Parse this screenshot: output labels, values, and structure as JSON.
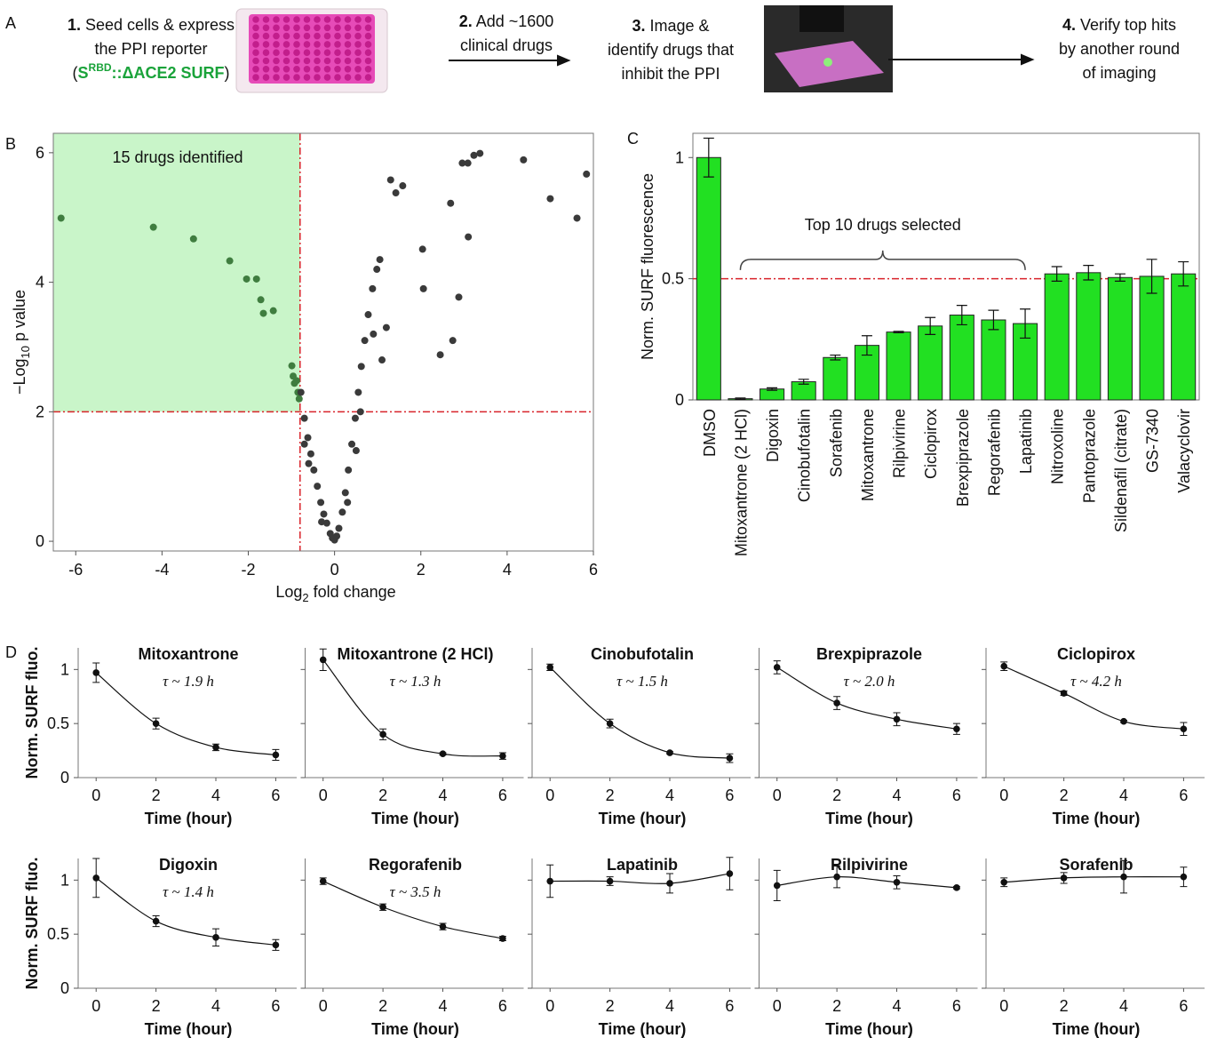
{
  "panel_labels": [
    "A",
    "B",
    "C",
    "D"
  ],
  "workflow": {
    "steps": [
      {
        "number": "1.",
        "lines": [
          "Seed cells & express",
          "the PPI reporter"
        ],
        "reporter": {
          "open": "(",
          "base": "S",
          "superscript": "RBD",
          "rest": "::ΔACE2 SURF",
          "close": ")",
          "color": "#1aa33a"
        }
      },
      {
        "number": "2.",
        "lines": [
          "Add ~1600",
          "clinical drugs"
        ]
      },
      {
        "number": "3.",
        "lines": [
          "Image &",
          "identify drugs that",
          "inhibit the PPI"
        ]
      },
      {
        "number": "4.",
        "lines": [
          "Verify top hits",
          "by another round",
          "of imaging"
        ]
      }
    ]
  },
  "chart_data": [
    {
      "type": "scatter",
      "annotation": "15 drugs identified",
      "annotation_color": "#e0141e",
      "xlabel_parts": [
        "Log",
        "2",
        " fold change"
      ],
      "ylabel_parts": [
        "−Log",
        "10",
        " p value"
      ],
      "xlim": [
        -6.52,
        6.0
      ],
      "ylim": [
        -0.15,
        6.3
      ],
      "xticks": [
        -6,
        -4,
        -2,
        0,
        2,
        4,
        6
      ],
      "yticks": [
        0,
        2,
        4,
        6
      ],
      "thresholds": {
        "x": -0.8,
        "y": 2
      },
      "threshold_color": "#d9232a",
      "highlight_color": "#c9f5c9",
      "series": [
        {
          "color": "#3f7d3f",
          "x": [
            -6.34,
            -4.2,
            -3.27,
            -2.43,
            -2.04,
            -1.81,
            -1.71,
            -1.65,
            -1.42,
            -0.99,
            -0.93,
            -0.88,
            -0.85,
            -0.82,
            -0.96
          ],
          "values": [
            4.99,
            4.85,
            4.67,
            4.33,
            4.05,
            4.05,
            3.73,
            3.52,
            3.56,
            2.71,
            2.44,
            2.48,
            2.3,
            2.2,
            2.55
          ]
        },
        {
          "color": "#3a3a3a",
          "x": [
            1.3,
            1.58,
            1.42,
            2.96,
            3.09,
            3.23,
            3.37,
            4.38,
            5.0,
            5.62,
            5.84,
            2.69,
            2.04,
            3.1,
            2.06,
            2.88,
            2.74,
            2.45,
            -0.78,
            -0.7,
            -0.62,
            -0.55,
            -0.48,
            -0.4,
            -0.32,
            -0.25,
            -0.18,
            -0.1,
            -0.05,
            0,
            0.05,
            0.1,
            0.18,
            0.25,
            0.32,
            0.4,
            0.48,
            0.55,
            0.62,
            0.7,
            0.78,
            0.88,
            0.98,
            1.05,
            0.5,
            0.3,
            -0.6,
            -0.3,
            0.6,
            0.9,
            1.1,
            1.2,
            -0.7
          ],
          "values": [
            5.58,
            5.49,
            5.38,
            5.84,
            5.84,
            5.96,
            5.99,
            5.89,
            5.29,
            4.99,
            5.67,
            5.22,
            4.51,
            4.7,
            3.9,
            3.77,
            3.1,
            2.88,
            2.3,
            1.9,
            1.6,
            1.35,
            1.1,
            0.85,
            0.6,
            0.42,
            0.28,
            0.12,
            0.05,
            0.02,
            0.08,
            0.2,
            0.45,
            0.75,
            1.1,
            1.5,
            1.9,
            2.3,
            2.7,
            3.1,
            3.5,
            3.9,
            4.2,
            4.35,
            1.4,
            0.6,
            1.2,
            0.3,
            2.0,
            3.2,
            2.8,
            3.3,
            1.5
          ]
        }
      ]
    },
    {
      "type": "bar",
      "ylabel": "Norm. SURF fluorescence",
      "color": "#22e022",
      "categories": [
        "DMSO",
        "Mitoxantrone (2 HCl)",
        "Digoxin",
        "Cinobufotalin",
        "Sorafenib",
        "Mitoxantrone",
        "Rilpivirine",
        "Ciclopirox",
        "Brexpiprazole",
        "Regorafenib",
        "Lapatinib",
        "Nitroxoline",
        "Pantoprazole",
        "Sildenafil (citrate)",
        "GS-7340",
        "Valacyclovir"
      ],
      "label_colors": [
        "#111",
        "#111",
        "#111",
        "#111",
        "#111",
        "#111",
        "#111",
        "#111",
        "#111",
        "#111",
        "#111",
        "#111",
        "#777",
        "#777",
        "#777",
        "#777"
      ],
      "values": [
        1.0,
        0.005,
        0.045,
        0.075,
        0.175,
        0.225,
        0.28,
        0.305,
        0.35,
        0.33,
        0.315,
        0.52,
        0.525,
        0.505,
        0.51,
        0.52
      ],
      "errors": [
        0.08,
        0.003,
        0.005,
        0.01,
        0.01,
        0.04,
        0.003,
        0.035,
        0.04,
        0.04,
        0.06,
        0.03,
        0.03,
        0.015,
        0.07,
        0.05
      ],
      "ylim": [
        0,
        1.1
      ],
      "yticks": [
        0,
        0.5,
        1
      ],
      "reference_line": 0.5,
      "reference_color": "#d9232a",
      "annotation": "Top 10 drugs selected",
      "annotation_span": [
        1,
        10
      ]
    },
    {
      "type": "line",
      "title": "Mitoxantrone",
      "tau_label": "τ ~ 1.9 h",
      "ylabel": "Norm. SURF fluo.",
      "xlabel": "Time (hour)",
      "x": [
        0,
        2,
        4,
        6
      ],
      "values": [
        0.97,
        0.5,
        0.28,
        0.21
      ],
      "errors": [
        0.09,
        0.05,
        0.03,
        0.05
      ],
      "xlim": [
        -0.6,
        6.7
      ],
      "ylim": [
        0,
        1.2
      ],
      "xticks": [
        0,
        2,
        4,
        6
      ],
      "yticks": [
        0,
        {
          "value": 0.5,
          "label": "0.5"
        },
        1
      ],
      "ytick_labels": true
    },
    {
      "type": "line",
      "title": "Mitoxantrone (2 HCl)",
      "tau_label": "τ ~ 1.3 h",
      "xlabel": "Time (hour)",
      "x": [
        0,
        2,
        4,
        6
      ],
      "values": [
        1.09,
        0.4,
        0.22,
        0.2
      ],
      "errors": [
        0.1,
        0.05,
        0.01,
        0.03
      ],
      "xlim": [
        -0.6,
        6.7
      ],
      "ylim": [
        0,
        1.2
      ],
      "xticks": [
        0,
        2,
        4,
        6
      ],
      "yticks": [
        0,
        0.5,
        1
      ],
      "ytick_labels": false
    },
    {
      "type": "line",
      "title": "Cinobufotalin",
      "tau_label": "τ ~ 1.5 h",
      "xlabel": "Time (hour)",
      "x": [
        0,
        2,
        4,
        6
      ],
      "values": [
        1.02,
        0.5,
        0.23,
        0.18
      ],
      "errors": [
        0.03,
        0.04,
        0.01,
        0.04
      ],
      "xlim": [
        -0.6,
        6.7
      ],
      "ylim": [
        0,
        1.2
      ],
      "xticks": [
        0,
        2,
        4,
        6
      ],
      "yticks": [
        0,
        0.5,
        1
      ],
      "ytick_labels": false
    },
    {
      "type": "line",
      "title": "Brexpiprazole",
      "tau_label": "τ ~ 2.0 h",
      "xlabel": "Time (hour)",
      "x": [
        0,
        2,
        4,
        6
      ],
      "values": [
        1.02,
        0.69,
        0.54,
        0.45
      ],
      "errors": [
        0.06,
        0.06,
        0.06,
        0.05
      ],
      "xlim": [
        -0.6,
        6.7
      ],
      "ylim": [
        0,
        1.2
      ],
      "xticks": [
        0,
        2,
        4,
        6
      ],
      "yticks": [
        0,
        0.5,
        1
      ],
      "ytick_labels": false
    },
    {
      "type": "line",
      "title": "Ciclopirox",
      "tau_label": "τ ~ 4.2 h",
      "xlabel": "Time (hour)",
      "x": [
        0,
        2,
        4,
        6
      ],
      "values": [
        1.03,
        0.78,
        0.52,
        0.45
      ],
      "errors": [
        0.04,
        0.02,
        0.01,
        0.06
      ],
      "xlim": [
        -0.6,
        6.7
      ],
      "ylim": [
        0,
        1.2
      ],
      "xticks": [
        0,
        2,
        4,
        6
      ],
      "yticks": [
        0,
        0.5,
        1
      ],
      "ytick_labels": false
    },
    {
      "type": "line",
      "title": "Digoxin",
      "tau_label": "τ ~ 1.4 h",
      "ylabel": "Norm. SURF fluo.",
      "xlabel": "Time (hour)",
      "x": [
        0,
        2,
        4,
        6
      ],
      "values": [
        1.02,
        0.62,
        0.47,
        0.4
      ],
      "errors": [
        0.18,
        0.05,
        0.08,
        0.05
      ],
      "xlim": [
        -0.6,
        6.7
      ],
      "ylim": [
        0,
        1.2
      ],
      "xticks": [
        0,
        2,
        4,
        6
      ],
      "yticks": [
        0,
        {
          "value": 0.5,
          "label": "0.5"
        },
        1
      ],
      "ytick_labels": true
    },
    {
      "type": "line",
      "title": "Regorafenib",
      "tau_label": "τ ~ 3.5 h",
      "xlabel": "Time (hour)",
      "x": [
        0,
        2,
        4,
        6
      ],
      "values": [
        0.99,
        0.75,
        0.57,
        0.46
      ],
      "errors": [
        0.03,
        0.03,
        0.03,
        0.02
      ],
      "xlim": [
        -0.6,
        6.7
      ],
      "ylim": [
        0,
        1.2
      ],
      "xticks": [
        0,
        2,
        4,
        6
      ],
      "yticks": [
        0,
        0.5,
        1
      ],
      "ytick_labels": false
    },
    {
      "type": "line",
      "title": "Lapatinib",
      "xlabel": "Time (hour)",
      "x": [
        0,
        2,
        4,
        6
      ],
      "values": [
        0.99,
        0.99,
        0.97,
        1.06
      ],
      "errors": [
        0.15,
        0.04,
        0.09,
        0.15
      ],
      "xlim": [
        -0.6,
        6.7
      ],
      "ylim": [
        0,
        1.2
      ],
      "xticks": [
        0,
        2,
        4,
        6
      ],
      "yticks": [
        0,
        0.5,
        1
      ],
      "ytick_labels": false
    },
    {
      "type": "line",
      "title": "Rilpivirine",
      "xlabel": "Time (hour)",
      "x": [
        0,
        2,
        4,
        6
      ],
      "values": [
        0.95,
        1.03,
        0.98,
        0.93
      ],
      "errors": [
        0.14,
        0.1,
        0.06,
        0.01
      ],
      "xlim": [
        -0.6,
        6.7
      ],
      "ylim": [
        0,
        1.2
      ],
      "xticks": [
        0,
        2,
        4,
        6
      ],
      "yticks": [
        0,
        0.5,
        1
      ],
      "ytick_labels": false
    },
    {
      "type": "line",
      "title": "Sorafenib",
      "xlabel": "Time (hour)",
      "x": [
        0,
        2,
        4,
        6
      ],
      "values": [
        0.98,
        1.02,
        1.03,
        1.03
      ],
      "errors": [
        0.04,
        0.05,
        0.15,
        0.09
      ],
      "xlim": [
        -0.6,
        6.7
      ],
      "ylim": [
        0,
        1.2
      ],
      "xticks": [
        0,
        2,
        4,
        6
      ],
      "yticks": [
        0,
        0.5,
        1
      ],
      "ytick_labels": false
    }
  ]
}
